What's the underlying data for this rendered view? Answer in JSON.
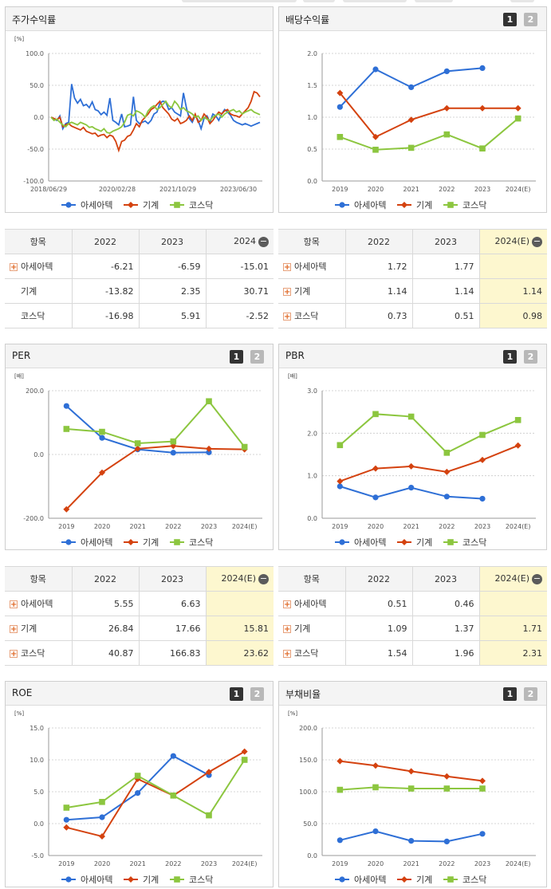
{
  "panels": {
    "stock": {
      "title": "주가수익률"
    },
    "div": {
      "title": "배당수익률",
      "btn1": "1",
      "btn2": "2"
    },
    "per": {
      "title": "PER",
      "btn1": "1",
      "btn2": "2"
    },
    "pbr": {
      "title": "PBR",
      "btn1": "1",
      "btn2": "2"
    },
    "roe": {
      "title": "ROE",
      "btn1": "1",
      "btn2": "2"
    },
    "debt": {
      "title": "부채비율",
      "btn1": "1",
      "btn2": "2"
    }
  },
  "legend": [
    "아세아텍",
    "기계",
    "코스닥"
  ],
  "colors": {
    "s1": "#2e6fd6",
    "s2": "#d4420f",
    "s3": "#8cc63f"
  },
  "tables": {
    "stock": {
      "headers": [
        "항목",
        "2022",
        "2023",
        "2024"
      ],
      "rows": [
        {
          "name": "아세아텍",
          "plus": true,
          "values": [
            "-6.21",
            "-6.59",
            "-15.01"
          ]
        },
        {
          "name": "기계",
          "plus": false,
          "values": [
            "-13.82",
            "2.35",
            "30.71"
          ]
        },
        {
          "name": "코스닥",
          "plus": false,
          "values": [
            "-16.98",
            "5.91",
            "-2.52"
          ]
        }
      ]
    },
    "div": {
      "headers": [
        "항목",
        "2022",
        "2023",
        "2024(E)"
      ],
      "rows": [
        {
          "name": "아세아텍",
          "plus": true,
          "values": [
            "1.72",
            "1.77",
            ""
          ]
        },
        {
          "name": "기계",
          "plus": true,
          "values": [
            "1.14",
            "1.14",
            "1.14"
          ]
        },
        {
          "name": "코스닥",
          "plus": true,
          "values": [
            "0.73",
            "0.51",
            "0.98"
          ]
        }
      ]
    },
    "per": {
      "headers": [
        "항목",
        "2022",
        "2023",
        "2024(E)"
      ],
      "rows": [
        {
          "name": "아세아텍",
          "plus": true,
          "values": [
            "5.55",
            "6.63",
            ""
          ]
        },
        {
          "name": "기계",
          "plus": true,
          "values": [
            "26.84",
            "17.66",
            "15.81"
          ]
        },
        {
          "name": "코스닥",
          "plus": true,
          "values": [
            "40.87",
            "166.83",
            "23.62"
          ]
        }
      ]
    },
    "pbr": {
      "headers": [
        "항목",
        "2022",
        "2023",
        "2024(E)"
      ],
      "rows": [
        {
          "name": "아세아텍",
          "plus": true,
          "values": [
            "0.51",
            "0.46",
            ""
          ]
        },
        {
          "name": "기계",
          "plus": true,
          "values": [
            "1.09",
            "1.37",
            "1.71"
          ]
        },
        {
          "name": "코스닥",
          "plus": true,
          "values": [
            "1.54",
            "1.96",
            "2.31"
          ]
        }
      ]
    }
  },
  "chart_data": [
    {
      "id": "stock",
      "type": "line",
      "unit": "[%]",
      "ylim": [
        -100,
        100
      ],
      "yticks": [
        "100.0",
        "50.0",
        "0.0",
        "-50.0",
        "-100.0"
      ],
      "x_labels": [
        "2018/06/29",
        "2020/02/28",
        "2021/10/29",
        "2023/06/30"
      ],
      "series": [
        {
          "name": "아세아텍",
          "values": [
            0,
            -3,
            -5,
            2,
            -18,
            -10,
            -8,
            52,
            30,
            22,
            28,
            18,
            20,
            15,
            24,
            12,
            10,
            4,
            8,
            3,
            30,
            -5,
            -8,
            -12,
            5,
            -15,
            -14,
            -12,
            32,
            -5,
            -10,
            -8,
            -6,
            -10,
            -5,
            5,
            8,
            22,
            25,
            24,
            12,
            15,
            8,
            5,
            2,
            38,
            15,
            -2,
            -8,
            3,
            -5,
            -18,
            -2,
            2,
            -8,
            5,
            2,
            -5,
            5,
            12,
            8,
            3,
            -5,
            -8,
            -10,
            -12,
            -10,
            -12,
            -14,
            -12,
            -10,
            -8
          ]
        },
        {
          "name": "기계",
          "values": [
            0,
            -2,
            -4,
            0,
            -15,
            -12,
            -10,
            -14,
            -16,
            -18,
            -20,
            -16,
            -22,
            -24,
            -26,
            -25,
            -30,
            -28,
            -27,
            -32,
            -28,
            -30,
            -38,
            -52,
            -38,
            -36,
            -30,
            -28,
            -20,
            -10,
            -15,
            -5,
            0,
            5,
            12,
            15,
            20,
            25,
            15,
            10,
            5,
            -3,
            -6,
            -2,
            -10,
            -8,
            -5,
            2,
            -5,
            5,
            -8,
            -5,
            5,
            0,
            -10,
            -5,
            2,
            8,
            5,
            10,
            12,
            5,
            3,
            2,
            0,
            5,
            10,
            15,
            25,
            40,
            38,
            32
          ]
        },
        {
          "name": "코스닥",
          "values": [
            0,
            -5,
            -3,
            -8,
            -12,
            -15,
            -10,
            -8,
            -10,
            -12,
            -8,
            -10,
            -12,
            -16,
            -15,
            -18,
            -20,
            -22,
            -18,
            -24,
            -25,
            -22,
            -20,
            -18,
            -15,
            -8,
            3,
            5,
            2,
            10,
            8,
            5,
            0,
            10,
            15,
            18,
            12,
            15,
            20,
            25,
            18,
            15,
            25,
            20,
            12,
            15,
            10,
            8,
            5,
            0,
            2,
            -5,
            0,
            -3,
            -5,
            0,
            3,
            5,
            0,
            5,
            8,
            10,
            12,
            8,
            10,
            5,
            8,
            10,
            12,
            8,
            6,
            4
          ]
        }
      ]
    },
    {
      "id": "div",
      "type": "line",
      "unit": "",
      "ylim": [
        0,
        2
      ],
      "yticks": [
        "2.0",
        "1.5",
        "1.0",
        "0.5",
        "0.0"
      ],
      "categories": [
        "2019",
        "2020",
        "2021",
        "2022",
        "2023",
        "2024(E)"
      ],
      "series": [
        {
          "name": "아세아텍",
          "values": [
            1.16,
            1.75,
            1.47,
            1.72,
            1.77,
            null
          ]
        },
        {
          "name": "기계",
          "values": [
            1.38,
            0.69,
            0.96,
            1.14,
            1.14,
            1.14
          ]
        },
        {
          "name": "코스닥",
          "values": [
            0.69,
            0.49,
            0.52,
            0.73,
            0.51,
            0.98
          ]
        }
      ]
    },
    {
      "id": "per",
      "type": "line",
      "unit": "[배]",
      "ylim": [
        -200,
        200
      ],
      "yticks": [
        "200.0",
        "0.0",
        "-200.0"
      ],
      "categories": [
        "2019",
        "2020",
        "2021",
        "2022",
        "2023",
        "2024(E)"
      ],
      "series": [
        {
          "name": "아세아텍",
          "values": [
            152,
            52,
            16,
            5.55,
            6.63,
            null
          ]
        },
        {
          "name": "기계",
          "values": [
            -172,
            -57,
            18,
            26.84,
            17.66,
            15.81
          ]
        },
        {
          "name": "코스닥",
          "values": [
            80,
            71,
            35,
            40.87,
            166.83,
            23.62
          ]
        }
      ]
    },
    {
      "id": "pbr",
      "type": "line",
      "unit": "[배]",
      "ylim": [
        0,
        3
      ],
      "yticks": [
        "3.0",
        "2.0",
        "1.0",
        "0.0"
      ],
      "categories": [
        "2019",
        "2020",
        "2021",
        "2022",
        "2023",
        "2024(E)"
      ],
      "series": [
        {
          "name": "아세아텍",
          "values": [
            0.75,
            0.49,
            0.72,
            0.51,
            0.46,
            null
          ]
        },
        {
          "name": "기계",
          "values": [
            0.87,
            1.17,
            1.22,
            1.09,
            1.37,
            1.71
          ]
        },
        {
          "name": "코스닥",
          "values": [
            1.72,
            2.45,
            2.39,
            1.54,
            1.96,
            2.31
          ]
        }
      ]
    },
    {
      "id": "roe",
      "type": "line",
      "unit": "[%]",
      "ylim": [
        -5,
        15
      ],
      "yticks": [
        "15.0",
        "10.0",
        "5.0",
        "0.0",
        "-5.0"
      ],
      "categories": [
        "2019",
        "2020",
        "2021",
        "2022",
        "2023",
        "2024(E)"
      ],
      "series": [
        {
          "name": "아세아텍",
          "values": [
            0.6,
            1.0,
            4.8,
            10.6,
            7.6,
            null
          ]
        },
        {
          "name": "기계",
          "values": [
            -0.6,
            -2.0,
            7.0,
            4.4,
            8.1,
            11.3
          ]
        },
        {
          "name": "코스닥",
          "values": [
            2.5,
            3.4,
            7.5,
            4.4,
            1.3,
            10.0
          ]
        }
      ]
    },
    {
      "id": "debt",
      "type": "line",
      "unit": "[%]",
      "ylim": [
        0,
        200
      ],
      "yticks": [
        "200.0",
        "150.0",
        "100.0",
        "50.0",
        "0.0"
      ],
      "categories": [
        "2019",
        "2020",
        "2021",
        "2022",
        "2023",
        "2024(E)"
      ],
      "series": [
        {
          "name": "아세아텍",
          "values": [
            24,
            38,
            23,
            22,
            34,
            null
          ]
        },
        {
          "name": "기계",
          "values": [
            148,
            141,
            132,
            124,
            117,
            null
          ]
        },
        {
          "name": "코스닥",
          "values": [
            103,
            107,
            105,
            105,
            105,
            null
          ]
        }
      ]
    }
  ]
}
